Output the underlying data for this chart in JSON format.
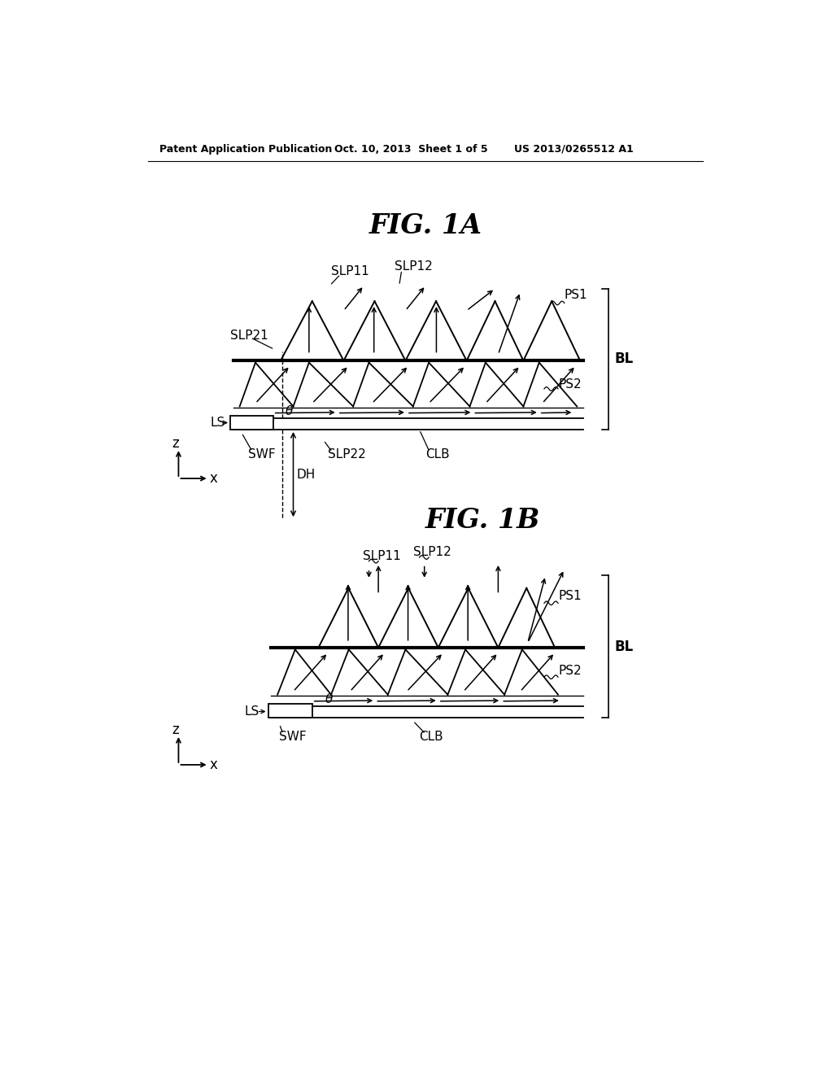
{
  "bg_color": "#ffffff",
  "header_text": "Patent Application Publication",
  "header_date": "Oct. 10, 2013  Sheet 1 of 5",
  "header_patent": "US 2013/0265512 A1",
  "fig1a_title": "FIG. 1A",
  "fig1b_title": "FIG. 1B",
  "line_color": "#000000",
  "text_color": "#000000"
}
